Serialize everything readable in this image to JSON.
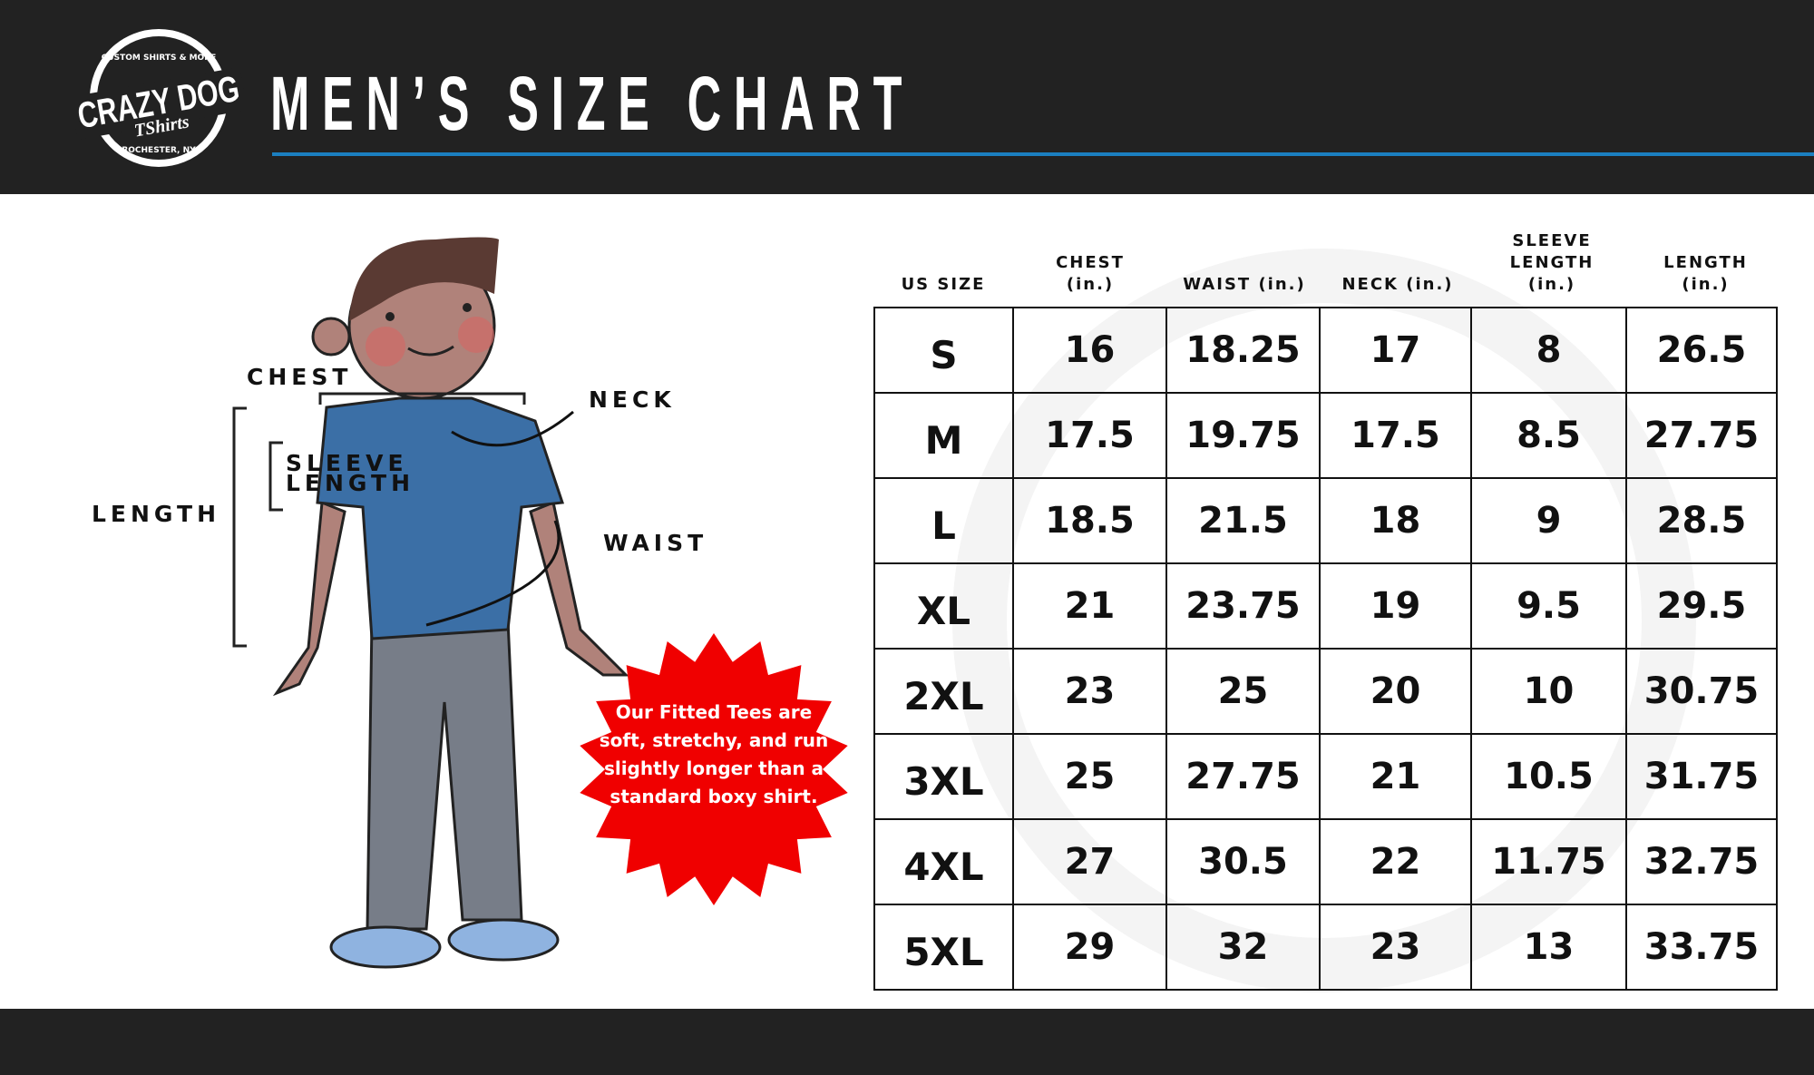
{
  "header": {
    "logo": {
      "main": "CRAZY DOG",
      "sub": "TShirts",
      "top_arc": "CUSTOM SHIRTS & MORE",
      "bottom_arc": "ROCHESTER, NY"
    },
    "title": "MEN’S SIZE CHART",
    "accent_color": "#1b7fc0"
  },
  "figure": {
    "labels": {
      "chest": "CHEST",
      "neck": "NECK",
      "sleeve_1": "SLEEVE",
      "sleeve_2": "LENGTH",
      "length": "LENGTH",
      "waist": "WAIST"
    },
    "note": "Our Fitted Tees are soft, stretchy, and run slightly longer than a standard boxy shirt.",
    "note_color": "#f00000"
  },
  "table": {
    "headers": [
      {
        "l1": "",
        "l2": "",
        "l3": "US SIZE"
      },
      {
        "l1": "",
        "l2": "CHEST",
        "l3": "(in.)"
      },
      {
        "l1": "",
        "l2": "",
        "l3": "WAIST (in.)"
      },
      {
        "l1": "",
        "l2": "",
        "l3": "NECK (in.)"
      },
      {
        "l1": "SLEEVE",
        "l2": "LENGTH",
        "l3": "(in.)"
      },
      {
        "l1": "",
        "l2": "LENGTH",
        "l3": "(in.)"
      }
    ],
    "rows": [
      [
        "S",
        "16",
        "18.25",
        "17",
        "8",
        "26.5"
      ],
      [
        "M",
        "17.5",
        "19.75",
        "17.5",
        "8.5",
        "27.75"
      ],
      [
        "L",
        "18.5",
        "21.5",
        "18",
        "9",
        "28.5"
      ],
      [
        "XL",
        "21",
        "23.75",
        "19",
        "9.5",
        "29.5"
      ],
      [
        "2XL",
        "23",
        "25",
        "20",
        "10",
        "30.75"
      ],
      [
        "3XL",
        "25",
        "27.75",
        "21",
        "10.5",
        "31.75"
      ],
      [
        "4XL",
        "27",
        "30.5",
        "22",
        "11.75",
        "32.75"
      ],
      [
        "5XL",
        "29",
        "32",
        "23",
        "13",
        "33.75"
      ]
    ]
  }
}
